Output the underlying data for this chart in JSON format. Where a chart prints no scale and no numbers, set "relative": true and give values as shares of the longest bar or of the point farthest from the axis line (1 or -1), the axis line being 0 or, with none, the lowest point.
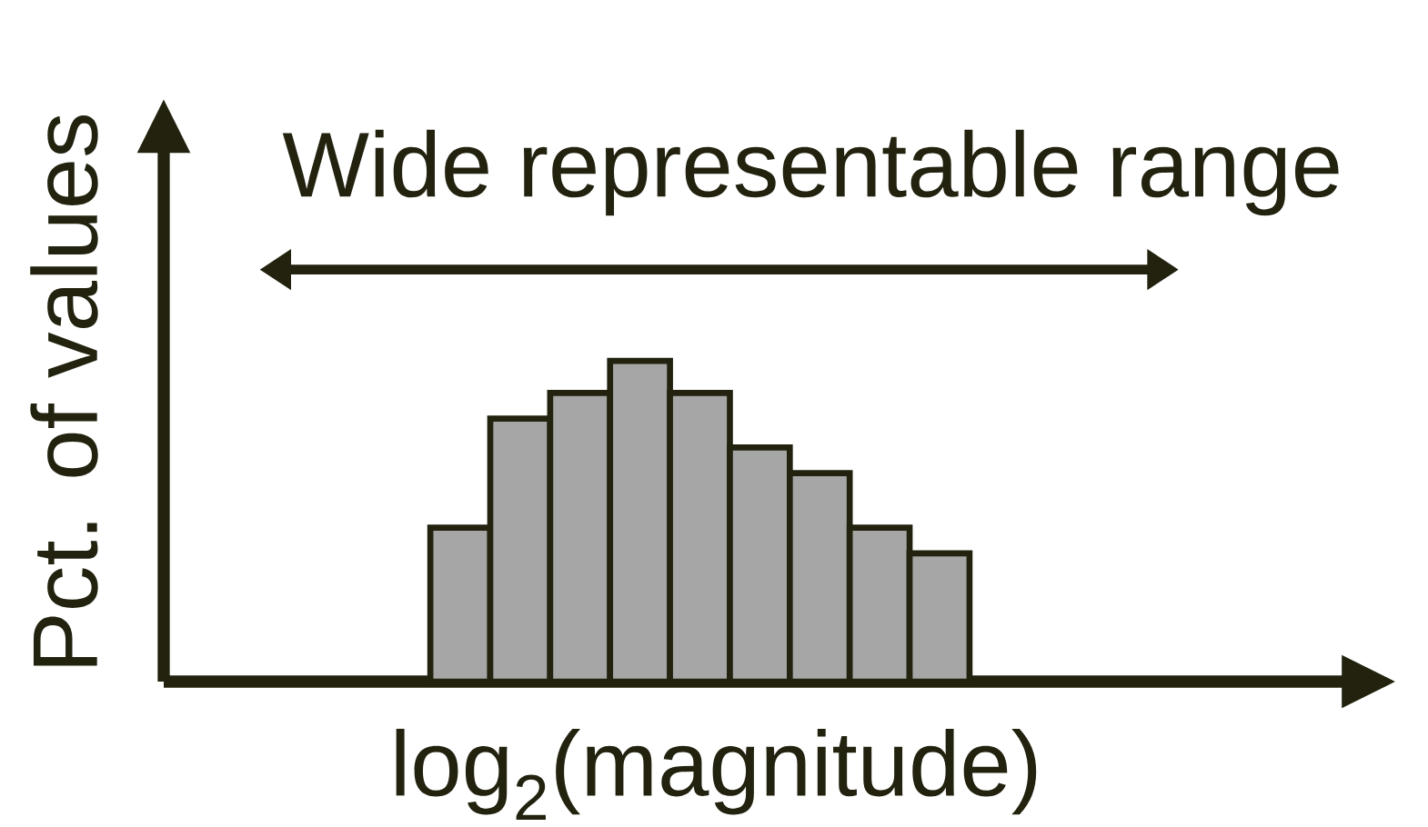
{
  "chart_data": {
    "type": "bar",
    "relative": true,
    "categories": [
      null,
      null,
      null,
      null,
      null,
      null,
      null,
      null,
      null
    ],
    "values": [
      0.48,
      0.82,
      0.9,
      1,
      0.9,
      0.73,
      0.65,
      0.48,
      0.4
    ],
    "color": "#a6a6a6",
    "xlabel": "log$_{2}$(magnitude)",
    "ylabel": "Pct. of values",
    "annotations": [
      "Wide representable range"
    ]
  }
}
